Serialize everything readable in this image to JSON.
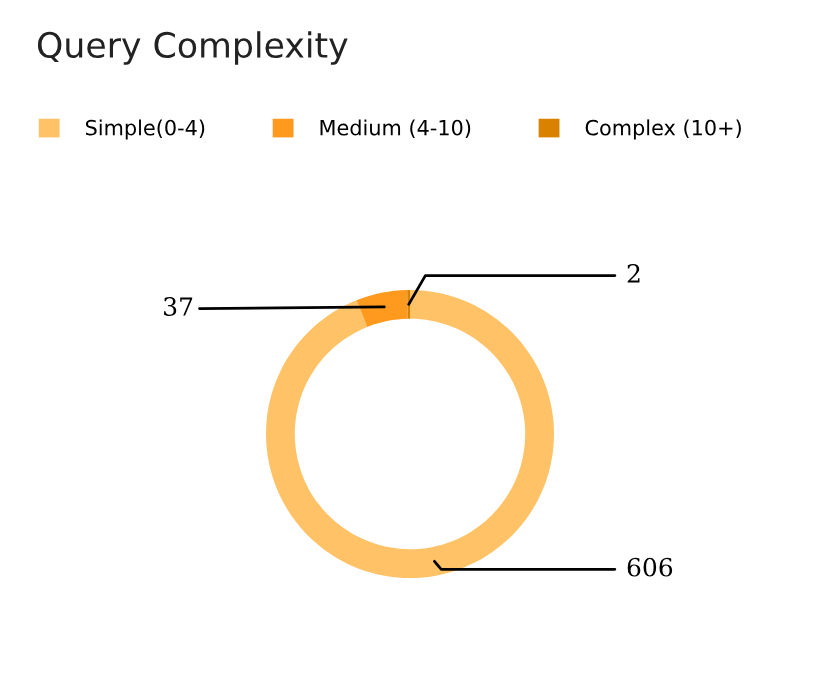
{
  "chart_data": {
    "type": "donut",
    "title": "Query Complexity",
    "categories": [
      "Simple(0-4)",
      "Medium (4-10)",
      "Complex (10+)"
    ],
    "values": [
      606,
      37,
      2
    ],
    "colors": [
      "#ffc266",
      "#ff9a1f",
      "#d98200"
    ],
    "data_labels": true,
    "legend": "top left"
  }
}
